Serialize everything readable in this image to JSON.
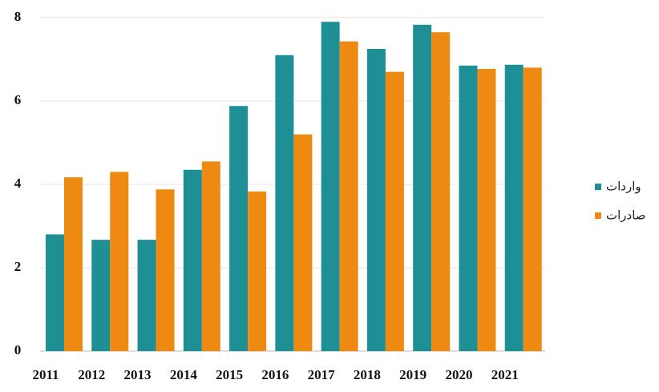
{
  "chart_data": {
    "type": "bar",
    "categories": [
      "2011",
      "2012",
      "2013",
      "2014",
      "2015",
      "2016",
      "2017",
      "2018",
      "2019",
      "2020",
      "2021"
    ],
    "series": [
      {
        "name": "واردات",
        "color": "#1f8f96",
        "values": [
          2.8,
          2.67,
          2.67,
          4.35,
          5.88,
          7.1,
          7.9,
          7.25,
          7.83,
          6.85,
          6.87
        ]
      },
      {
        "name": "صادرات",
        "color": "#ee8a12",
        "values": [
          4.17,
          4.3,
          3.88,
          4.55,
          3.83,
          5.2,
          7.43,
          6.7,
          7.65,
          6.77,
          6.8
        ]
      }
    ],
    "ylim": [
      0,
      8
    ],
    "yticks": [
      0,
      2,
      4,
      6,
      8
    ],
    "grid": true
  }
}
